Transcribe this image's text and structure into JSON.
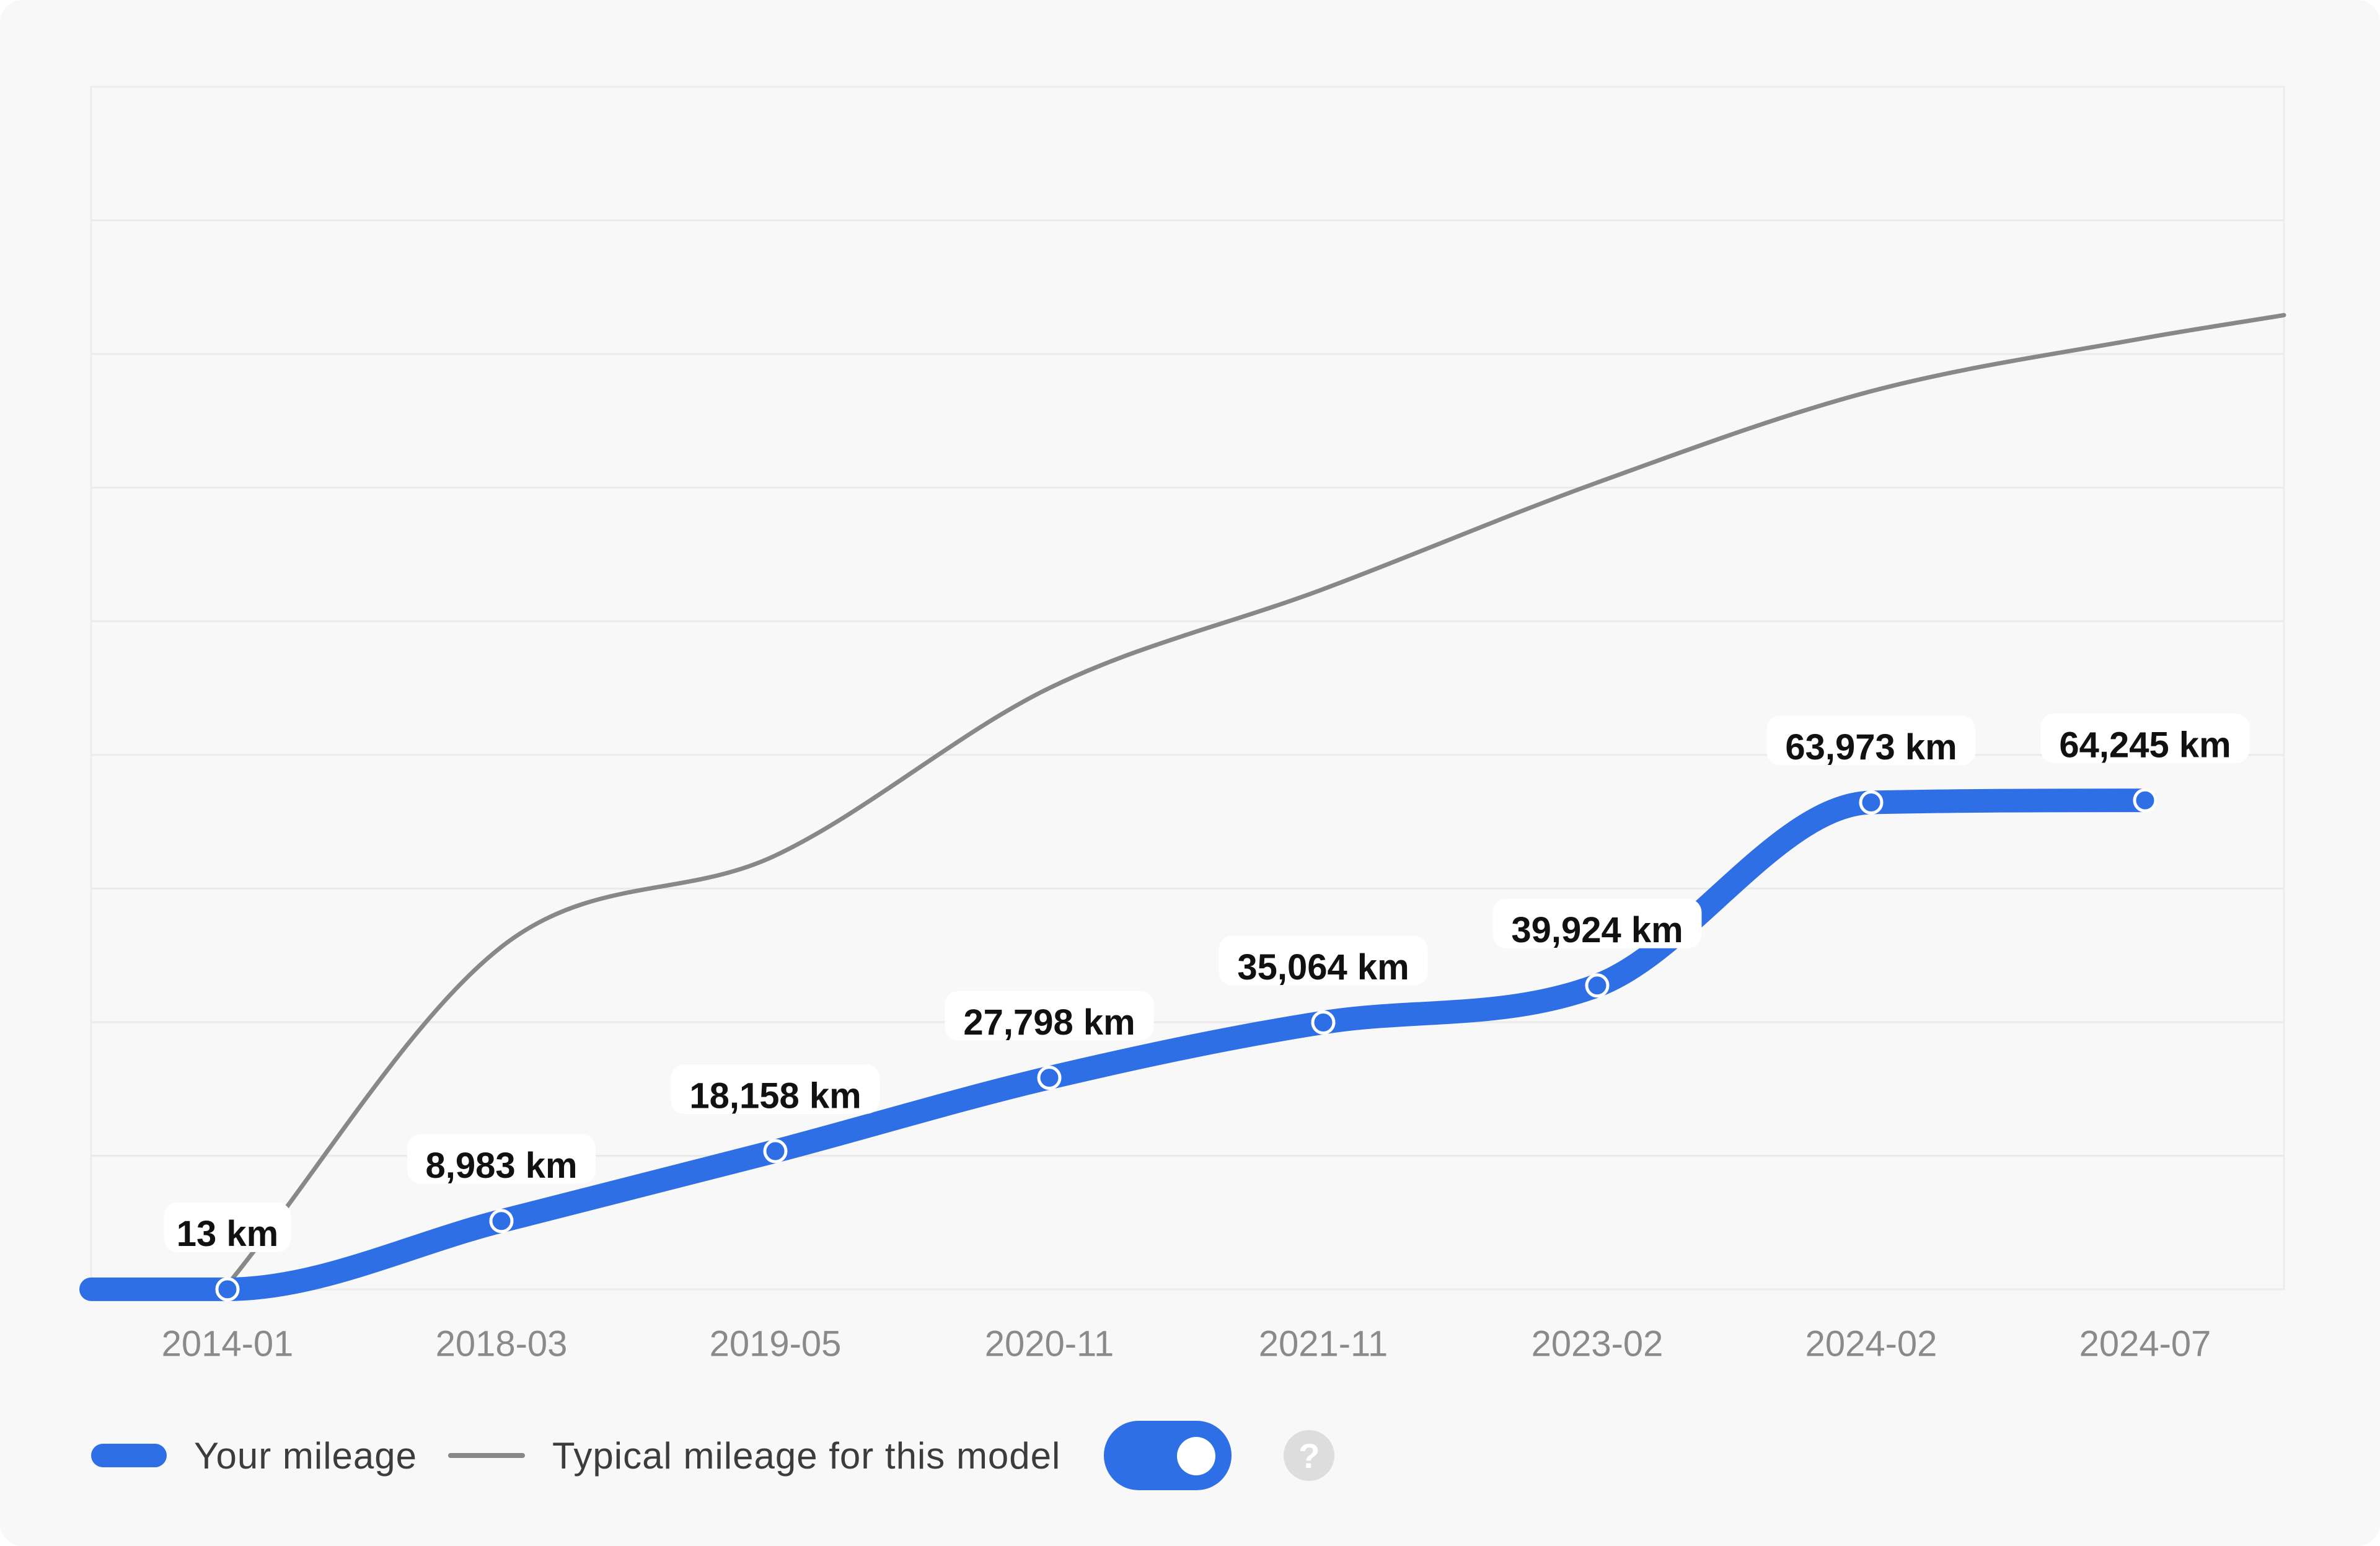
{
  "chart_data": {
    "type": "line",
    "categories": [
      "2014-01",
      "2018-03",
      "2019-05",
      "2020-11",
      "2021-11",
      "2023-02",
      "2024-02",
      "2024-07"
    ],
    "series": [
      {
        "name": "Your mileage",
        "color": "#2f6fe6",
        "values": [
          13,
          8983,
          18158,
          27798,
          35064,
          39924,
          63973,
          64245
        ],
        "labels": [
          "13 km",
          "8,983 km",
          "18,158 km",
          "27,798 km",
          "35,064 km",
          "39,924 km",
          "63,973 km",
          "64,245 km"
        ]
      },
      {
        "name": "Typical mileage for this model",
        "color": "#888888",
        "values": [
          600,
          45000,
          57000,
          79000,
          92000,
          106000,
          118000,
          125000
        ]
      }
    ],
    "ylim": [
      0,
      158000
    ],
    "grid": true
  },
  "legend": {
    "your_mileage": "Your mileage",
    "typical_mileage": "Typical mileage for this model",
    "toggle_on": true,
    "help_glyph": "?"
  }
}
